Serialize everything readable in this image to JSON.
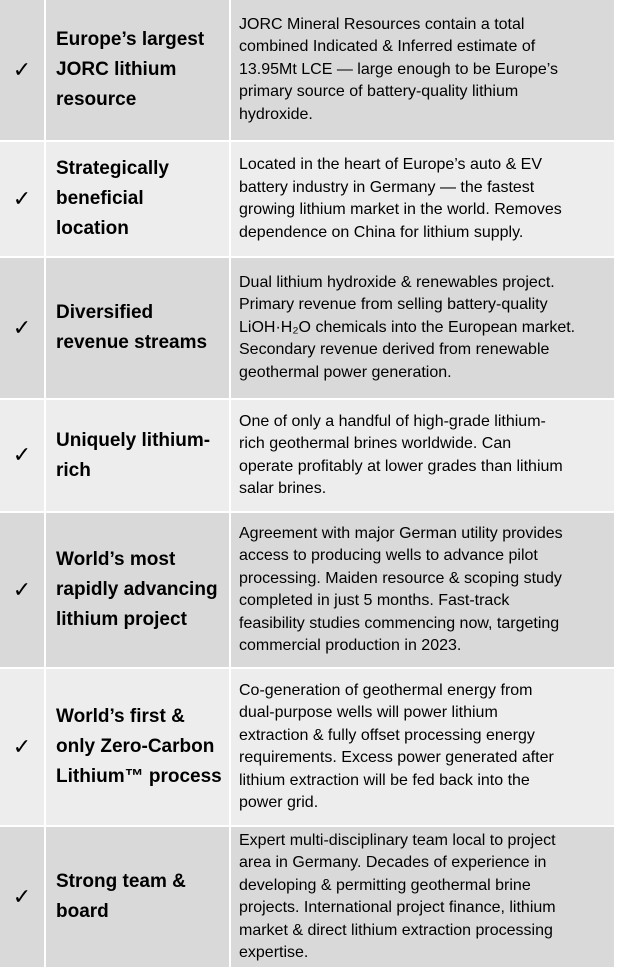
{
  "check_symbol": "✓",
  "rows": [
    {
      "title": "Europe’s largest\nJORC lithium\nresource",
      "description": "JORC Mineral Resources contain a total\ncombined Indicated & Inferred estimate of\n13.95Mt LCE — large enough to be Europe’s\nprimary source of battery-quality lithium\nhydroxide."
    },
    {
      "title": "Strategically\nbeneficial\nlocation",
      "description": "Located in the heart of Europe’s auto & EV\nbattery industry in Germany — the fastest\ngrowing lithium market in the world. Removes\ndependence on China for lithium supply."
    },
    {
      "title": "Diversified\nrevenue streams",
      "description": "Dual lithium hydroxide & renewables project.\nPrimary revenue from selling battery-quality\nLiOH·H₂O chemicals into the European market.\nSecondary revenue derived from renewable\ngeothermal power generation."
    },
    {
      "title": "Uniquely lithium-\nrich",
      "description": "One of only a handful of high-grade lithium-\nrich geothermal brines worldwide. Can\noperate profitably at lower grades than lithium\nsalar brines."
    },
    {
      "title": "World’s most\nrapidly advancing\nlithium project",
      "description": "Agreement with major German utility provides\naccess to producing wells to advance pilot\nprocessing. Maiden resource & scoping study\ncompleted in just 5 months. Fast-track\nfeasibility studies commencing now, targeting\ncommercial production in 2023."
    },
    {
      "title": "World’s first &\nonly Zero-Carbon\nLithium™ process",
      "description": "Co-generation of geothermal energy from\ndual-purpose wells will power lithium\nextraction & fully offset processing energy\nrequirements. Excess power generated after\nlithium extraction will be fed back into the\npower grid."
    },
    {
      "title": "Strong team &\nboard",
      "description": "Expert multi-disciplinary team local to project\narea in Germany. Decades of experience in\ndeveloping & permitting geothermal brine\nprojects. International project finance, lithium\nmarket & direct lithium extraction processing\nexpertise."
    }
  ]
}
